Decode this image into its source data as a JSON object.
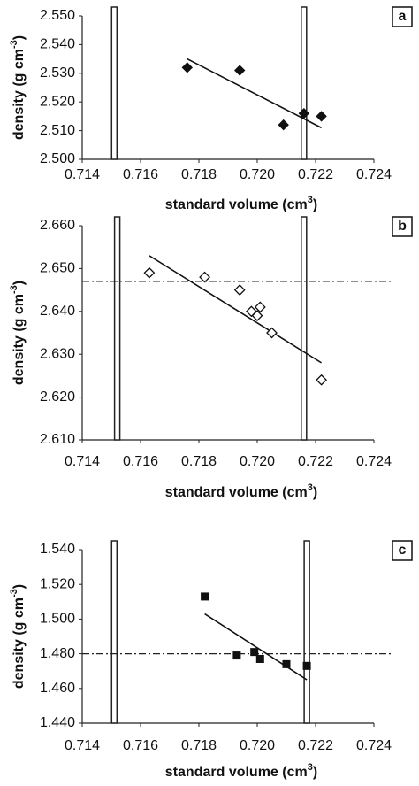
{
  "chart_data": [
    {
      "type": "scatter",
      "panel_label": "a",
      "marker": "diamond-filled",
      "color": "#111111",
      "x_label": {
        "text": "standard volume (cm",
        "sup": "3",
        "end": ")"
      },
      "y_label": {
        "text": "density (g cm",
        "sup": "-3",
        "end": ")"
      },
      "x": [
        0.7176,
        0.7194,
        0.7209,
        0.7216,
        0.7222
      ],
      "values": [
        2.532,
        2.531,
        2.512,
        2.516,
        2.515
      ],
      "trend": {
        "x": [
          0.7176,
          0.7222
        ],
        "values": [
          2.535,
          2.511
        ]
      },
      "vlines": [
        0.7151,
        0.7216
      ],
      "xlim": [
        0.714,
        0.724
      ],
      "ylim": [
        2.5,
        2.55
      ],
      "xticks": [
        0.714,
        0.716,
        0.718,
        {
          "value": 0.72,
          "label": "0.720"
        },
        0.722,
        0.724
      ],
      "yticks": [
        {
          "value": 2.5,
          "label": "2.500"
        },
        {
          "value": 2.51,
          "label": "2.510"
        },
        {
          "value": 2.52,
          "label": "2.520"
        },
        {
          "value": 2.53,
          "label": "2.530"
        },
        {
          "value": 2.54,
          "label": "2.540"
        },
        {
          "value": 2.55,
          "label": "2.550"
        }
      ]
    },
    {
      "type": "scatter",
      "panel_label": "b",
      "marker": "diamond-open",
      "color": "#111111",
      "x_label": {
        "text": "standard volume (cm",
        "sup": "3",
        "end": ")"
      },
      "y_label": {
        "text": "density (g cm",
        "sup": "-3",
        "end": ")"
      },
      "x": [
        0.7163,
        0.7182,
        0.7194,
        0.7198,
        0.72,
        0.7201,
        0.7205,
        0.7222
      ],
      "values": [
        2.649,
        2.648,
        2.645,
        2.64,
        2.639,
        2.641,
        2.635,
        2.624
      ],
      "trend": {
        "x": [
          0.7163,
          0.7222
        ],
        "values": [
          2.653,
          2.628
        ]
      },
      "reference_y": 2.647,
      "vlines": [
        0.7152,
        0.7216
      ],
      "xlim": [
        0.714,
        0.724
      ],
      "ylim": [
        2.61,
        2.66
      ],
      "xticks": [
        0.714,
        0.716,
        0.718,
        {
          "value": 0.72,
          "label": "0.720"
        },
        0.722,
        0.724
      ],
      "yticks": [
        {
          "value": 2.61,
          "label": "2.610"
        },
        {
          "value": 2.62,
          "label": "2.620"
        },
        {
          "value": 2.63,
          "label": "2.630"
        },
        {
          "value": 2.64,
          "label": "2.640"
        },
        {
          "value": 2.65,
          "label": "2.650"
        },
        {
          "value": 2.66,
          "label": "2.660"
        }
      ]
    },
    {
      "type": "scatter",
      "panel_label": "c",
      "marker": "square-filled",
      "color": "#111111",
      "x_label": {
        "text": "standard volume (cm",
        "sup": "3",
        "end": ")"
      },
      "y_label": {
        "text": "density (g cm",
        "sup": "-3",
        "end": ")"
      },
      "x": [
        0.7182,
        0.7193,
        0.7199,
        0.7201,
        0.721,
        0.7217
      ],
      "values": [
        1.513,
        1.479,
        1.481,
        1.477,
        1.474,
        1.473
      ],
      "trend": {
        "x": [
          0.7182,
          0.7217
        ],
        "values": [
          1.503,
          1.465
        ]
      },
      "reference_y": 1.48,
      "vlines": [
        0.7151,
        0.7217
      ],
      "xlim": [
        0.714,
        0.724
      ],
      "ylim": [
        1.44,
        1.54
      ],
      "xticks": [
        0.714,
        0.716,
        0.718,
        {
          "value": 0.72,
          "label": "0.720"
        },
        0.722,
        0.724
      ],
      "yticks": [
        {
          "value": 1.44,
          "label": "1.440"
        },
        {
          "value": 1.46,
          "label": "1.460"
        },
        {
          "value": 1.48,
          "label": "1.480"
        },
        {
          "value": 1.5,
          "label": "1.500"
        },
        {
          "value": 1.52,
          "label": "1.520"
        },
        {
          "value": 1.54,
          "label": "1.540"
        }
      ]
    }
  ]
}
